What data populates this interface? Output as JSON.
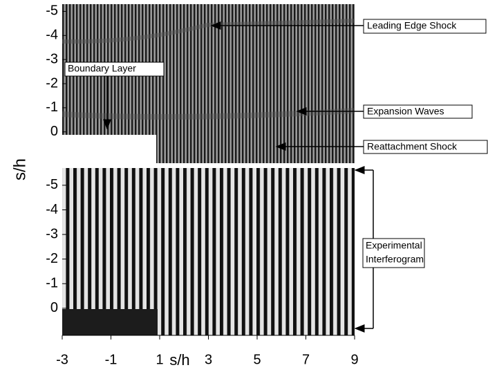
{
  "chart_data": [
    {
      "type": "interferogram",
      "ylabel": "s/h",
      "ylim": [
        -5.3,
        1.3
      ],
      "yreversed": true,
      "yticks": [
        -5,
        -4,
        -3,
        -2,
        -1,
        0
      ],
      "annotations": [
        "Leading Edge Shock",
        "Boundary Layer",
        "Expansion Waves",
        "Reattachment Shock"
      ]
    },
    {
      "type": "interferogram",
      "ylim": [
        -5.7,
        1.1
      ],
      "yreversed": true,
      "yticks": [
        -5,
        -4,
        -3,
        -2,
        -1,
        0
      ],
      "xlabel": "s/h",
      "xlim": [
        -3,
        9
      ],
      "xticks": [
        -3,
        -1,
        1,
        3,
        5,
        7,
        9
      ],
      "annotation_lines": [
        "Experimental",
        "Interferogram"
      ]
    }
  ]
}
